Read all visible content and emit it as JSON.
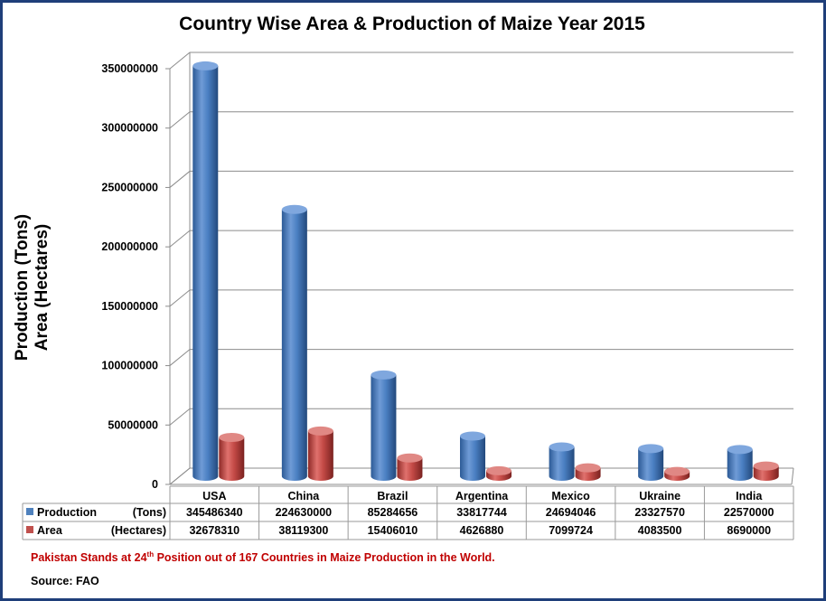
{
  "chart_data": {
    "type": "bar",
    "title": "Country Wise Area & Production of Maize Year 2015",
    "ylabel_line1": "Production (Tons)",
    "ylabel_line2": "Area (Hectares)",
    "ylim": [
      0,
      350000000
    ],
    "yticks": [
      "0",
      "50000000",
      "100000000",
      "150000000",
      "200000000",
      "250000000",
      "300000000",
      "350000000"
    ],
    "grid": true,
    "legend_placement": "data-table",
    "categories": [
      "USA",
      "China",
      "Brazil",
      "Argentina",
      "Mexico",
      "Ukraine",
      "India"
    ],
    "series": [
      {
        "name": "Production",
        "unit": "(Tons)",
        "color": "#4f81bd",
        "values": [
          345486340,
          224630000,
          85284656,
          33817744,
          24694046,
          23327570,
          22570000
        ]
      },
      {
        "name": "Area",
        "unit": "(Hectares)",
        "color": "#c0504d",
        "values": [
          32678310,
          38119300,
          15406010,
          4626880,
          7099724,
          4083500,
          8690000
        ]
      }
    ]
  },
  "footnote": {
    "pre": "Pakistan Stands at 24",
    "sup": "th",
    "post": "  Position out of 167 Countries in Maize Production in the World."
  },
  "source": "Source: FAO"
}
